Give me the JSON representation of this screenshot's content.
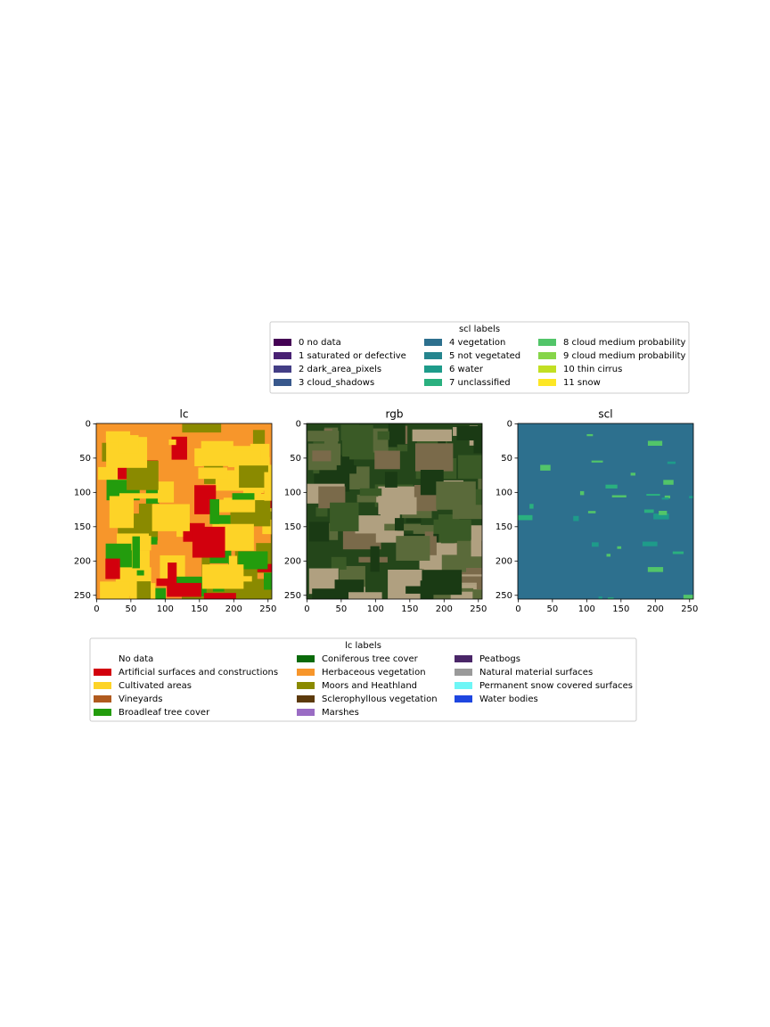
{
  "chart_data": [
    {
      "type": "image",
      "title": "lc",
      "xlim": [
        -0.5,
        255.5
      ],
      "ylim": [
        255.5,
        -0.5
      ],
      "xticks": [
        0,
        50,
        100,
        150,
        200,
        250
      ],
      "yticks": [
        0,
        50,
        100,
        150,
        200,
        250
      ]
    },
    {
      "type": "image",
      "title": "rgb",
      "xlim": [
        -0.5,
        255.5
      ],
      "ylim": [
        255.5,
        -0.5
      ],
      "xticks": [
        0,
        50,
        100,
        150,
        200,
        250
      ],
      "yticks": [
        0,
        50,
        100,
        150,
        200,
        250
      ]
    },
    {
      "type": "image",
      "title": "scl",
      "xlim": [
        -0.5,
        255.5
      ],
      "ylim": [
        255.5,
        -0.5
      ],
      "xticks": [
        0,
        50,
        100,
        150,
        200,
        250
      ],
      "yticks": [
        0,
        50,
        100,
        150,
        200,
        250
      ]
    }
  ],
  "legends": [
    {
      "title": "scl labels",
      "entries": [
        {
          "label": "0 no data",
          "color": "#440154"
        },
        {
          "label": "1 saturated or defective",
          "color": "#482173"
        },
        {
          "label": "2 dark_area_pixels",
          "color": "#433e85"
        },
        {
          "label": "3 cloud_shadows",
          "color": "#38588c"
        },
        {
          "label": "4 vegetation",
          "color": "#2d708e"
        },
        {
          "label": "5 not vegetated",
          "color": "#25858e"
        },
        {
          "label": "6 water",
          "color": "#1e9b8a"
        },
        {
          "label": "7 unclassified",
          "color": "#2ab07f"
        },
        {
          "label": "8 cloud medium probability",
          "color": "#52c569"
        },
        {
          "label": "9 cloud medium probability",
          "color": "#86d549"
        },
        {
          "label": "10 thin cirrus",
          "color": "#c2df23"
        },
        {
          "label": "11 snow",
          "color": "#fde725"
        }
      ]
    },
    {
      "title": "lc labels",
      "entries": [
        {
          "label": "No data",
          "color": "#ffffff"
        },
        {
          "label": "Artificial surfaces and constructions",
          "color": "#d2000d"
        },
        {
          "label": "Cultivated areas",
          "color": "#fdd327"
        },
        {
          "label": "Vineyards",
          "color": "#b05a1e"
        },
        {
          "label": "Broadleaf tree cover",
          "color": "#239c0d"
        },
        {
          "label": "Coniferous tree cover",
          "color": "#0a6a0a"
        },
        {
          "label": "Herbaceous vegetation",
          "color": "#f7962b"
        },
        {
          "label": "Moors and Heathland",
          "color": "#8a8a00"
        },
        {
          "label": "Sclerophyllous vegetation",
          "color": "#5c3a0c"
        },
        {
          "label": "Marshes",
          "color": "#9a6cc4"
        },
        {
          "label": "Peatbogs",
          "color": "#4a2668"
        },
        {
          "label": "Natural material surfaces",
          "color": "#9a9a9a"
        },
        {
          "label": "Permanent snow covered surfaces",
          "color": "#6ef6f6"
        },
        {
          "label": "Water bodies",
          "color": "#1e46e0"
        }
      ]
    }
  ]
}
